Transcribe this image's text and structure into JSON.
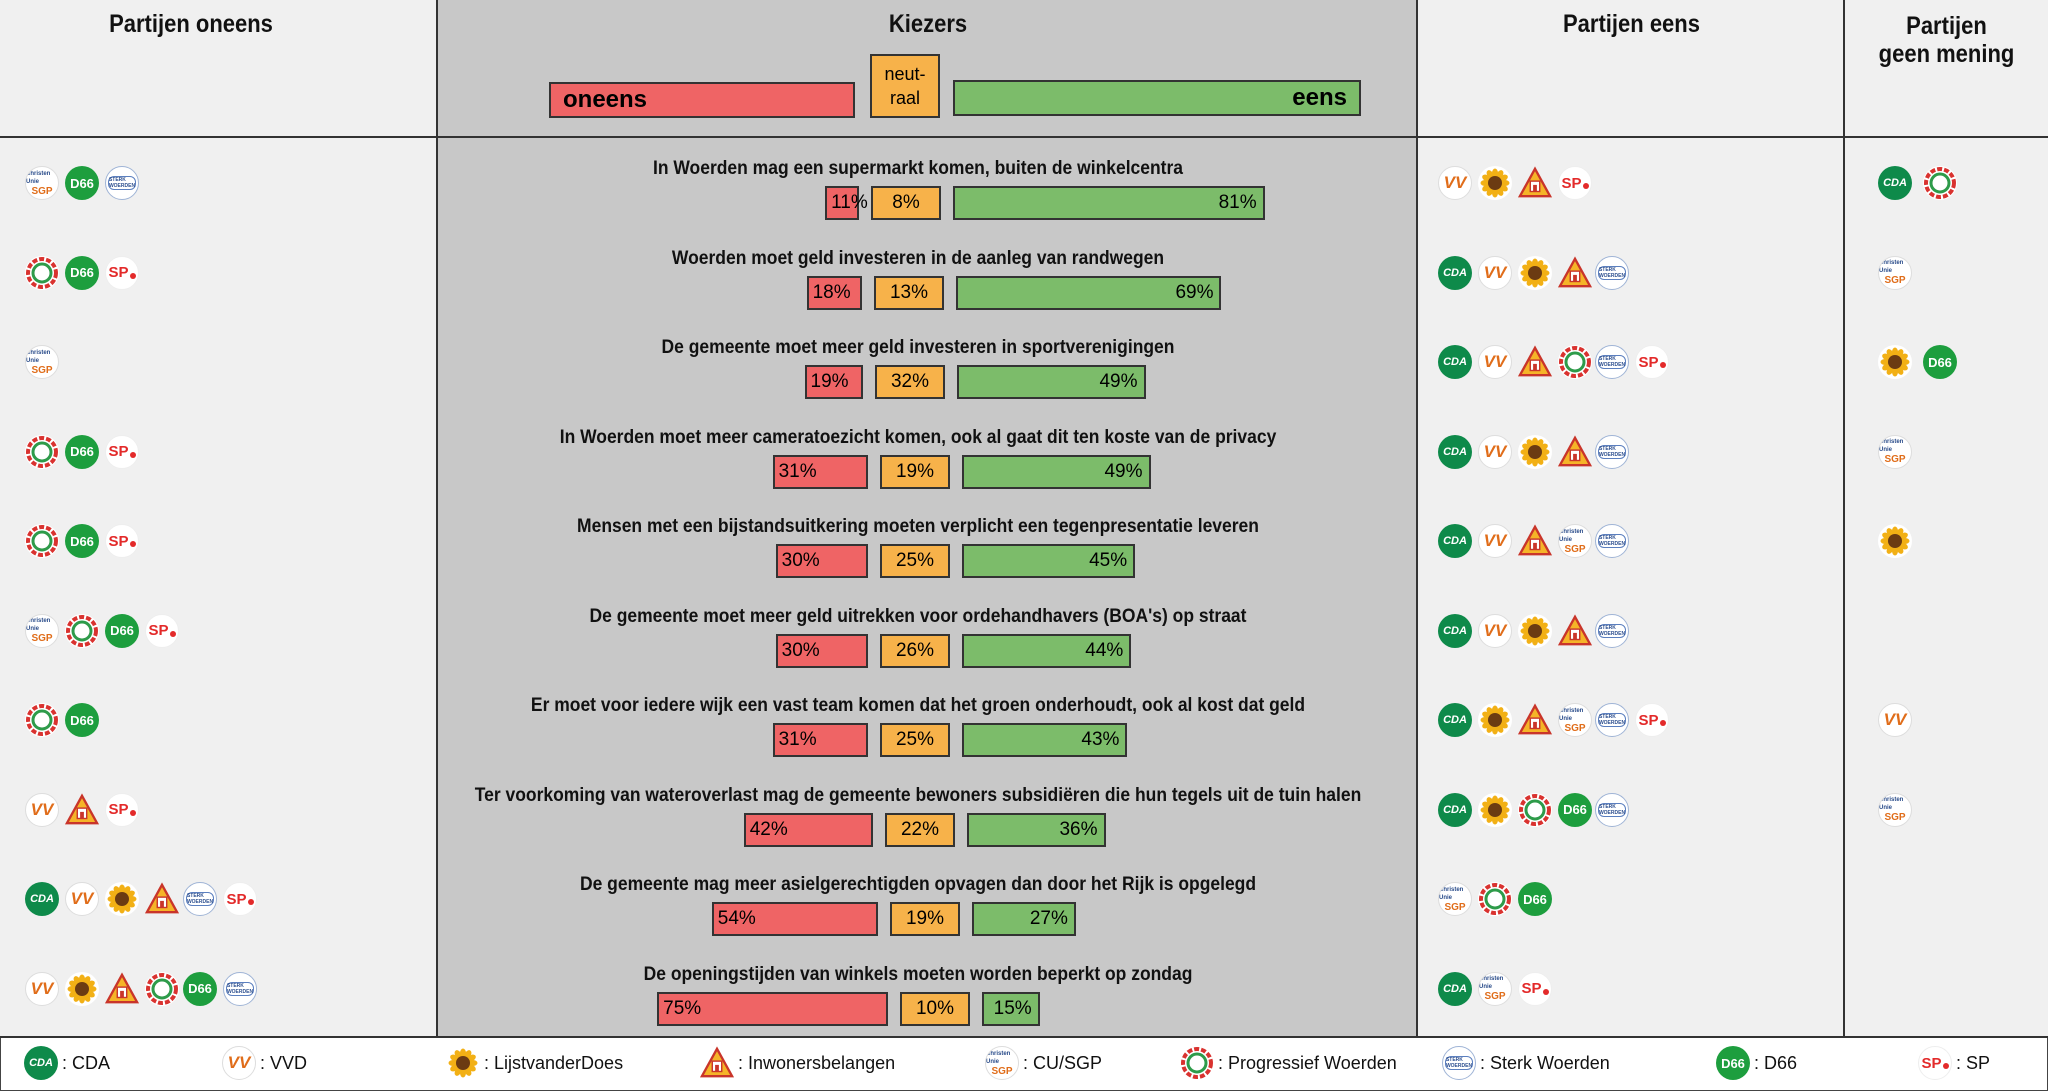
{
  "columns": {
    "oneens": "Partijen oneens",
    "kiezers": "Kiezers",
    "eens": "Partijen eens",
    "geen_line1": "Partijen",
    "geen_line2": "geen mening"
  },
  "keys": {
    "oneens": "oneens",
    "neutraal_line1": "neut-",
    "neutraal_line2": "raal",
    "eens": "eens"
  },
  "colors": {
    "oneens": "#ef6465",
    "neutraal": "#f7b24a",
    "eens": "#7cbc6a"
  },
  "chart_data": {
    "type": "bar",
    "orientation": "horizontal-stacked",
    "series": [
      {
        "name": "oneens",
        "values": [
          11,
          18,
          19,
          31,
          30,
          30,
          31,
          42,
          54,
          75
        ]
      },
      {
        "name": "neutraal",
        "values": [
          8,
          13,
          32,
          19,
          25,
          26,
          25,
          22,
          19,
          10
        ]
      },
      {
        "name": "eens",
        "values": [
          81,
          69,
          49,
          49,
          45,
          44,
          43,
          36,
          27,
          15
        ]
      }
    ],
    "questions": [
      {
        "text": "In Woerden mag een supermarkt komen, buiten de winkelcentra",
        "oneens": 11,
        "neutraal": 8,
        "eens": 81,
        "oneens_labels": [
          "%",
          "%",
          "%"
        ],
        "oneens_parties": [
          "cu",
          "d66",
          "sw"
        ],
        "eens_parties": [
          "vvd",
          "ldd",
          "ib",
          "sp"
        ],
        "geen_parties": [
          "cda",
          "pw"
        ]
      },
      {
        "text": "Woerden moet geld investeren in de aanleg van randwegen",
        "oneens": 18,
        "neutraal": 13,
        "eens": 69,
        "oneens_parties": [
          "pw",
          "d66",
          "sp"
        ],
        "eens_parties": [
          "cda",
          "vvd",
          "ldd",
          "ib",
          "sw"
        ],
        "geen_parties": [
          "cu"
        ]
      },
      {
        "text": "De gemeente moet meer geld investeren in sportverenigingen",
        "oneens": 19,
        "neutraal": 32,
        "eens": 49,
        "oneens_parties": [
          "cu"
        ],
        "eens_parties": [
          "cda",
          "vvd",
          "ib",
          "pw",
          "sw",
          "sp"
        ],
        "geen_parties": [
          "ldd",
          "d66"
        ]
      },
      {
        "text": "In Woerden moet meer cameratoezicht komen, ook al gaat dit ten koste van de privacy",
        "oneens": 31,
        "neutraal": 19,
        "eens": 49,
        "oneens_parties": [
          "pw",
          "d66",
          "sp"
        ],
        "eens_parties": [
          "cda",
          "vvd",
          "ldd",
          "ib",
          "sw"
        ],
        "geen_parties": [
          "cu"
        ]
      },
      {
        "text": "Mensen met een bijstandsuitkering moeten verplicht een tegenpresentatie leveren",
        "oneens": 30,
        "neutraal": 25,
        "eens": 45,
        "oneens_parties": [
          "pw",
          "d66",
          "sp"
        ],
        "eens_parties": [
          "cda",
          "vvd",
          "ib",
          "cu",
          "sw"
        ],
        "geen_parties": [
          "ldd"
        ]
      },
      {
        "text": "De gemeente moet meer geld uitrekken voor ordehandhavers (BOA's) op straat",
        "oneens": 30,
        "neutraal": 26,
        "eens": 44,
        "oneens_parties": [
          "cu",
          "pw",
          "d66",
          "sp"
        ],
        "eens_parties": [
          "cda",
          "vvd",
          "ldd",
          "ib",
          "sw"
        ],
        "geen_parties": []
      },
      {
        "text": "Er moet voor iedere wijk een vast team komen dat het groen onderhoudt, ook al kost dat geld",
        "oneens": 31,
        "neutraal": 25,
        "eens": 43,
        "oneens_parties": [
          "pw",
          "d66"
        ],
        "eens_parties": [
          "cda",
          "ldd",
          "ib",
          "cu",
          "sw",
          "sp"
        ],
        "geen_parties": [
          "vvd"
        ]
      },
      {
        "text": "Ter voorkoming van wateroverlast mag de gemeente bewoners subsidiëren die hun tegels uit de tuin halen",
        "oneens": 42,
        "neutraal": 22,
        "eens": 36,
        "oneens_parties": [
          "vvd",
          "ib",
          "sp"
        ],
        "eens_parties": [
          "cda",
          "ldd",
          "pw",
          "d66",
          "sw"
        ],
        "geen_parties": [
          "cu"
        ]
      },
      {
        "text": "De gemeente mag meer asielgerechtigden opvagen dan door het Rijk is opgelegd",
        "oneens": 54,
        "neutraal": 19,
        "eens": 27,
        "oneens_parties": [
          "cda",
          "vvd",
          "ldd",
          "ib",
          "sw",
          "sp"
        ],
        "eens_parties": [
          "cu",
          "pw",
          "d66"
        ],
        "geen_parties": []
      },
      {
        "text": "De openingstijden van winkels moeten worden beperkt op zondag",
        "oneens": 75,
        "neutraal": 10,
        "eens": 15,
        "oneens_parties": [
          "vvd",
          "ldd",
          "ib",
          "pw",
          "d66",
          "sw"
        ],
        "eens_parties": [
          "cda",
          "cu",
          "sp"
        ],
        "geen_parties": []
      }
    ]
  },
  "parties": {
    "cda": {
      "logo": "CDA",
      "name": ": CDA",
      "icon": "cda-logo-icon"
    },
    "vvd": {
      "logo": "VV",
      "name": ": VVD",
      "icon": "vvd-logo-icon"
    },
    "ldd": {
      "logo": "",
      "name": ": LijstvanderDoes",
      "icon": "sunflower-icon"
    },
    "ib": {
      "logo": "",
      "name": ": Inwonersbelangen",
      "icon": "triangle-house-icon"
    },
    "cu": {
      "logo_top": "Christen Unie",
      "logo_bottom": "SGP",
      "name": ": CU/SGP",
      "icon": "cu-sgp-logo-icon"
    },
    "pw": {
      "logo": "",
      "name": ": Progressief Woerden",
      "icon": "red-green-wreath-icon"
    },
    "sw": {
      "logo": "STERK WOERDEN",
      "name": ": Sterk Woerden",
      "icon": "sterk-woerden-logo-icon"
    },
    "d66": {
      "logo": "D66",
      "name": ": D66",
      "icon": "d66-logo-icon"
    },
    "sp": {
      "logo": "SP",
      "name": ": SP",
      "icon": "sp-tomato-logo-icon"
    }
  },
  "legend_order": [
    "cda",
    "vvd",
    "ldd",
    "ib",
    "cu",
    "pw",
    "sw",
    "d66",
    "sp"
  ]
}
